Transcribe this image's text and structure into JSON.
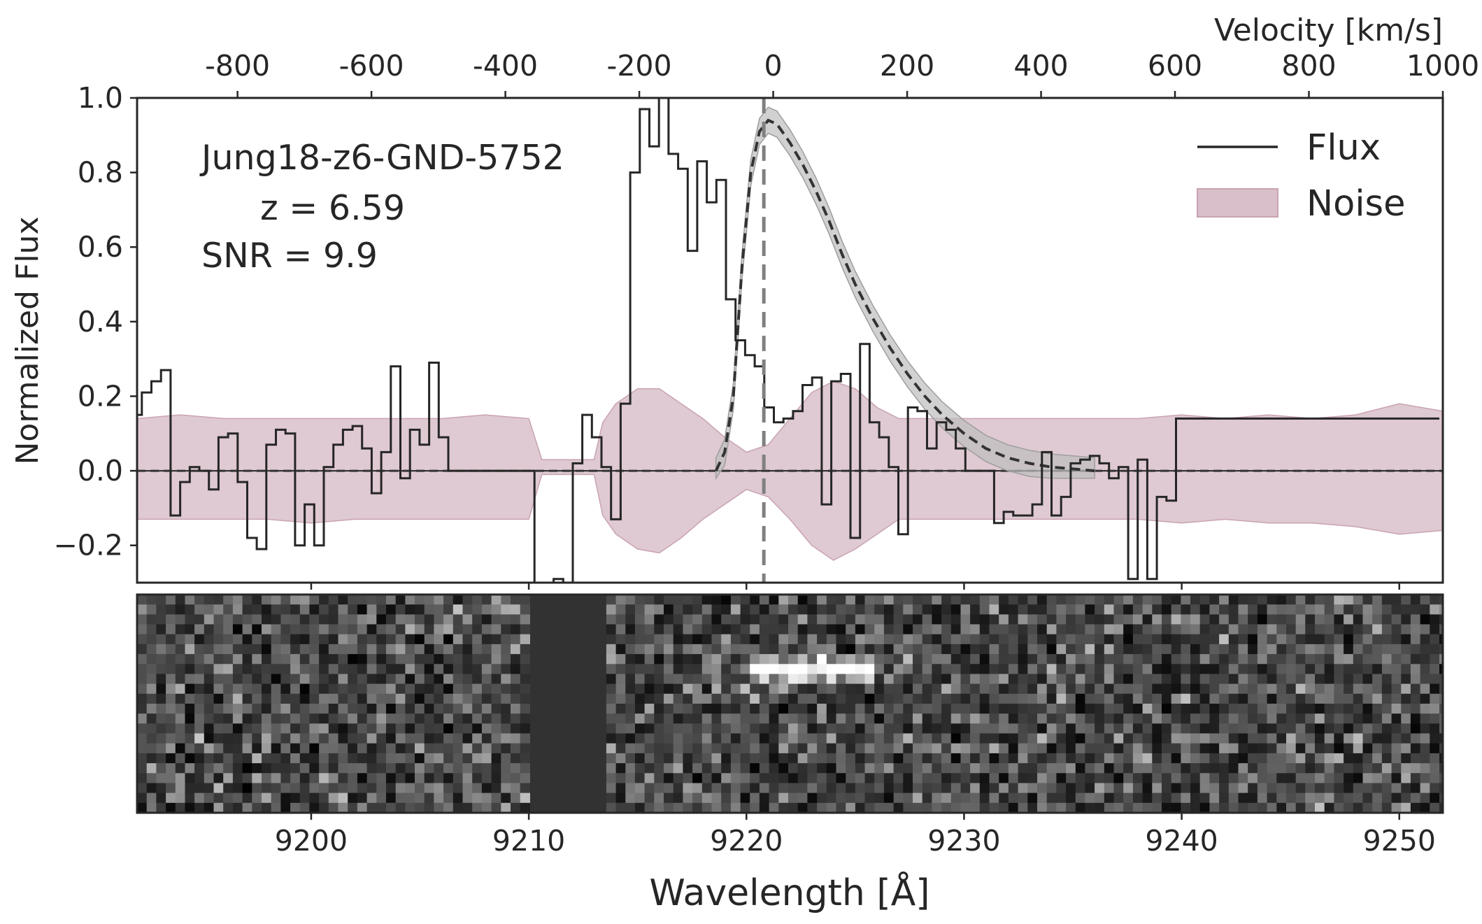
{
  "chart_data": {
    "type": "line",
    "title": "",
    "annotation": {
      "name": "Jung18-z6-GND-5752",
      "redshift": "z = 6.59",
      "snr": "SNR = 9.9"
    },
    "legend": {
      "placement": "top-right",
      "entries": [
        "Flux",
        "Noise"
      ]
    },
    "colors": {
      "flux": "#262626",
      "noise_fill": "#d9bfca",
      "noise_edge": "#c9a3b3",
      "fit": "#333333",
      "fit_band": "#bdbdbd",
      "center_line": "#808080",
      "spectrum_bg": "#323232"
    },
    "xlabel": "Wavelength [Å]",
    "ylabel": "Normalized Flux",
    "top_xlabel": "Velocity [km/s]",
    "xlim": [
      9192,
      9252
    ],
    "ylim": [
      -0.3,
      1.0
    ],
    "velocity_lim": [
      -950,
      1000
    ],
    "grid": false,
    "x_ticks": [
      9200,
      9210,
      9220,
      9230,
      9240,
      9250
    ],
    "x_tick_labels": [
      "9200",
      "9210",
      "9220",
      "9230",
      "9240",
      "9250"
    ],
    "y_ticks": [
      -0.2,
      0.0,
      0.2,
      0.4,
      0.6,
      0.8,
      1.0
    ],
    "y_tick_labels": [
      "−0.2",
      "0.0",
      "0.2",
      "0.4",
      "0.6",
      "0.8",
      "1.0"
    ],
    "velocity_ticks": [
      -800,
      -600,
      -400,
      -200,
      0,
      200,
      400,
      600,
      800,
      1000
    ],
    "velocity_tick_labels": [
      "-800",
      "-600",
      "-400",
      "-200",
      "0",
      "200",
      "400",
      "600",
      "800",
      "1000"
    ],
    "line_center": 9220.8,
    "series": [
      {
        "name": "Flux",
        "style": "steps-mid",
        "x": [
          9192.0,
          9192.44,
          9192.88,
          9193.32,
          9193.76,
          9194.2,
          9194.64,
          9195.08,
          9195.52,
          9195.96,
          9196.4,
          9196.84,
          9197.28,
          9197.72,
          9198.16,
          9198.6,
          9199.04,
          9199.48,
          9199.92,
          9200.36,
          9200.8,
          9201.24,
          9201.68,
          9202.12,
          9202.56,
          9203.0,
          9203.44,
          9203.88,
          9204.32,
          9204.76,
          9205.2,
          9205.64,
          9206.08,
          9206.52,
          9206.96,
          9207.4,
          9207.84,
          9208.28,
          9208.72,
          9209.16,
          9209.6,
          9210.04,
          9210.48,
          9210.92,
          9211.36,
          9211.8,
          9212.24,
          9212.68,
          9213.12,
          9213.56,
          9214.0,
          9214.44,
          9214.88,
          9215.32,
          9215.76,
          9216.2,
          9216.64,
          9217.08,
          9217.52,
          9217.96,
          9218.4,
          9218.84,
          9219.28,
          9219.72,
          9220.16,
          9220.6,
          9221.04,
          9221.48,
          9221.92,
          9222.36,
          9222.8,
          9223.24,
          9223.68,
          9224.12,
          9224.56,
          9225.0,
          9225.44,
          9225.88,
          9226.32,
          9226.76,
          9227.2,
          9227.64,
          9228.08,
          9228.52,
          9228.96,
          9229.4,
          9229.84,
          9230.28,
          9230.72,
          9231.16,
          9231.6,
          9232.04,
          9232.48,
          9232.92,
          9233.36,
          9233.8,
          9234.24,
          9234.68,
          9235.12,
          9235.56,
          9236.0,
          9236.44,
          9236.88,
          9237.32,
          9237.76,
          9238.2,
          9238.64,
          9239.08,
          9239.52,
          9239.96,
          9240.4,
          9240.84,
          9241.28,
          9241.72,
          9242.16,
          9242.6,
          9243.04,
          9243.48,
          9243.92,
          9244.36,
          9244.8,
          9245.24,
          9245.68,
          9246.12,
          9246.56,
          9247.0,
          9247.44,
          9247.88,
          9248.32,
          9248.76,
          9249.2,
          9249.64,
          9250.08,
          9250.52,
          9250.96,
          9251.4,
          9251.84
        ],
        "values": [
          0.15,
          0.21,
          0.24,
          0.27,
          -0.12,
          -0.03,
          0.01,
          0.0,
          -0.05,
          0.09,
          0.1,
          -0.03,
          -0.18,
          -0.21,
          0.07,
          0.11,
          0.1,
          -0.2,
          -0.09,
          -0.2,
          0.01,
          0.07,
          0.11,
          0.12,
          0.06,
          -0.06,
          0.05,
          0.28,
          -0.02,
          0.11,
          0.07,
          0.29,
          0.09,
          0.0,
          0.0,
          0.0,
          0.0,
          0.0,
          0.0,
          0.0,
          0.0,
          0.0,
          -0.32,
          -0.3,
          -0.29,
          -0.33,
          0.02,
          0.15,
          0.09,
          0.01,
          -0.13,
          0.18,
          0.8,
          0.97,
          0.87,
          1.0,
          0.85,
          0.81,
          0.59,
          0.83,
          0.72,
          0.78,
          0.46,
          0.35,
          0.31,
          0.28,
          0.17,
          0.13,
          0.14,
          0.16,
          0.23,
          0.25,
          -0.09,
          0.24,
          0.26,
          -0.18,
          0.34,
          0.13,
          0.09,
          0.01,
          -0.17,
          0.17,
          0.16,
          0.06,
          0.13,
          0.11,
          0.06,
          0.0,
          0.0,
          0.0,
          -0.14,
          -0.11,
          -0.12,
          -0.12,
          -0.09,
          0.05,
          -0.12,
          -0.07,
          0.02,
          0.03,
          0.04,
          0.02,
          -0.02,
          0.01,
          -0.29,
          0.03,
          -0.29,
          -0.07,
          -0.08,
          0.14,
          0.14,
          0.14,
          0.14,
          0.14,
          0.14,
          0.14,
          0.14,
          0.14,
          0.14,
          0.14,
          0.14,
          0.14,
          0.14,
          0.14,
          0.14,
          0.14,
          0.14,
          0.14,
          0.14,
          0.14,
          0.14,
          0.14,
          0.14,
          0.14,
          0.14,
          0.14,
          0.14
        ]
      },
      {
        "name": "Noise",
        "style": "band",
        "x": [
          9192,
          9194,
          9196,
          9198,
          9200,
          9202,
          9204,
          9206,
          9208,
          9210,
          9210.6,
          9211,
          9212,
          9213,
          9213.4,
          9214,
          9215,
          9216,
          9217,
          9218,
          9219,
          9220,
          9221,
          9222,
          9223,
          9224,
          9225,
          9226,
          9227,
          9228,
          9229,
          9230,
          9232,
          9234,
          9236,
          9238,
          9240,
          9242,
          9244,
          9246,
          9248,
          9250,
          9252
        ],
        "upper": [
          0.14,
          0.15,
          0.14,
          0.14,
          0.14,
          0.14,
          0.14,
          0.14,
          0.15,
          0.14,
          0.03,
          0.03,
          0.03,
          0.03,
          0.13,
          0.18,
          0.22,
          0.22,
          0.18,
          0.14,
          0.09,
          0.05,
          0.07,
          0.14,
          0.21,
          0.24,
          0.22,
          0.17,
          0.14,
          0.14,
          0.14,
          0.14,
          0.14,
          0.14,
          0.14,
          0.14,
          0.15,
          0.14,
          0.15,
          0.14,
          0.15,
          0.18,
          0.16
        ],
        "lower": [
          -0.13,
          -0.13,
          -0.13,
          -0.13,
          -0.14,
          -0.13,
          -0.13,
          -0.13,
          -0.13,
          -0.13,
          -0.01,
          -0.01,
          -0.01,
          -0.01,
          -0.12,
          -0.17,
          -0.21,
          -0.22,
          -0.18,
          -0.13,
          -0.09,
          -0.05,
          -0.07,
          -0.13,
          -0.2,
          -0.24,
          -0.21,
          -0.17,
          -0.13,
          -0.13,
          -0.13,
          -0.13,
          -0.13,
          -0.13,
          -0.13,
          -0.13,
          -0.14,
          -0.13,
          -0.14,
          -0.14,
          -0.15,
          -0.17,
          -0.16
        ]
      },
      {
        "name": "",
        "style": "dashed-fit",
        "x": [
          9218.6,
          9219.0,
          9219.4,
          9219.8,
          9220.2,
          9220.6,
          9221.0,
          9221.4,
          9222.0,
          9222.6,
          9223.2,
          9223.8,
          9224.4,
          9225.0,
          9225.8,
          9226.6,
          9227.4,
          9228.2,
          9229.0,
          9230.0,
          9231.0,
          9232.0,
          9233.0,
          9234.0,
          9235.0,
          9236.0
        ],
        "values": [
          0.0,
          0.05,
          0.2,
          0.55,
          0.8,
          0.91,
          0.94,
          0.93,
          0.88,
          0.82,
          0.75,
          0.67,
          0.58,
          0.5,
          0.41,
          0.33,
          0.26,
          0.2,
          0.15,
          0.1,
          0.06,
          0.035,
          0.02,
          0.01,
          0.005,
          0.0
        ],
        "band": 0.035
      }
    ],
    "spectrum_2d": {
      "rows": 22,
      "bin_width": 0.44,
      "gap": [
        9210.3,
        9213.5
      ],
      "emission": {
        "x": 9221.5,
        "row": 7,
        "width": 1.6,
        "length": 4.0
      }
    }
  }
}
